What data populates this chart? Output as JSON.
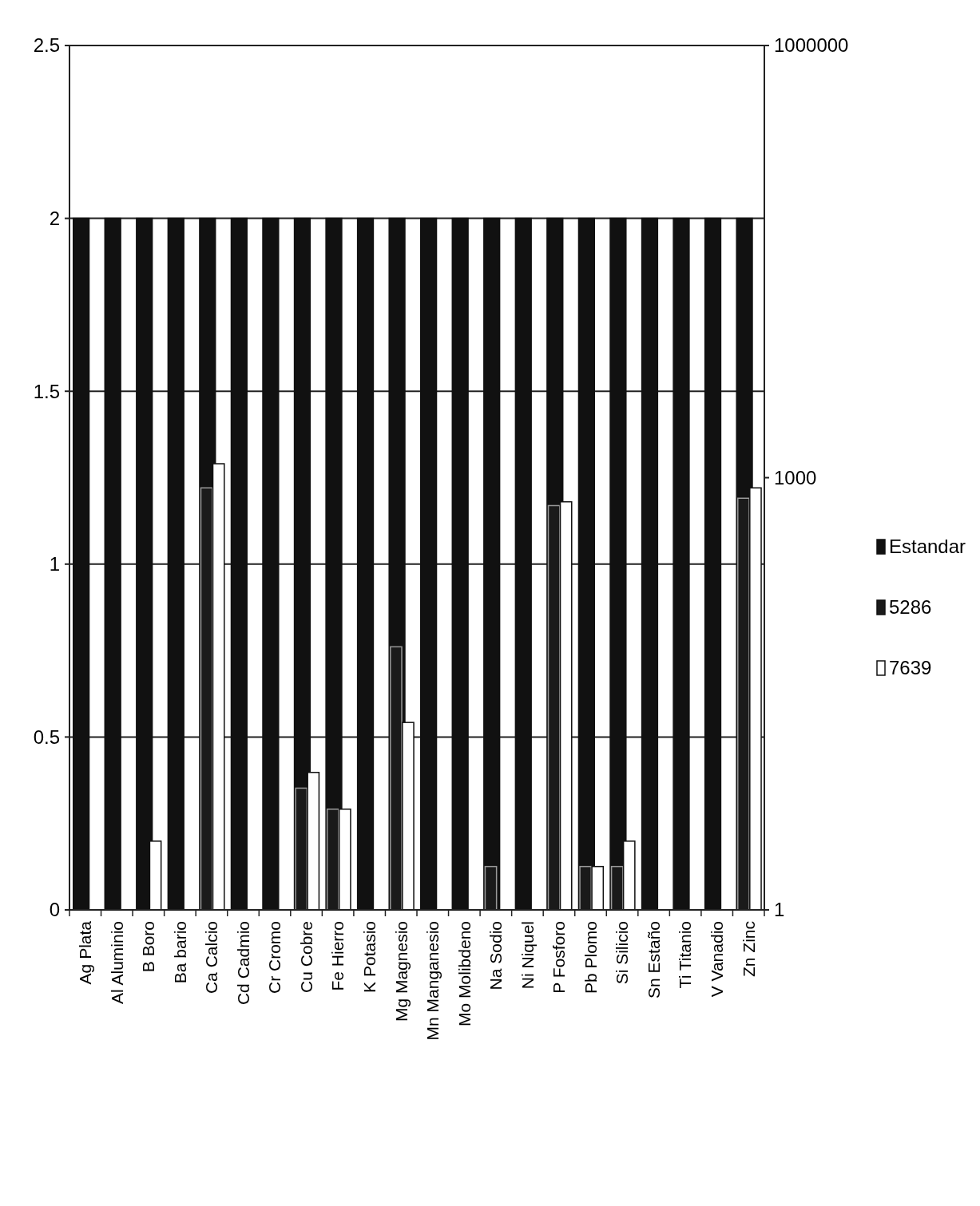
{
  "chart_data": {
    "type": "bar",
    "categories": [
      "Ag Plata",
      "Al Aluminio",
      "B Boro",
      "Ba bario",
      "Ca Calcio",
      "Cd Cadmio",
      "Cr Cromo",
      "Cu Cobre",
      "Fe Hierro",
      "K Potasio",
      "Mg Magnesio",
      "Mn Manganesio",
      "Mo Molibdeno",
      "Na Sodio",
      "Ni Niquel",
      "P Fosforo",
      "Pb Plomo",
      "Si Silicio",
      "Sn Estaño",
      "Ti Titanio",
      "V Vanadio",
      "Zn Zinc"
    ],
    "series": [
      {
        "name": "Estandar",
        "color": "#111111",
        "values": [
          2,
          2,
          2,
          2,
          2,
          2,
          2,
          2,
          2,
          2,
          2,
          2,
          2,
          2,
          2,
          2,
          2,
          2,
          2,
          2,
          2,
          2
        ]
      },
      {
        "name": "5286",
        "color": "#1a1a1a",
        "axis": "y2",
        "values": [
          null,
          null,
          null,
          null,
          850,
          null,
          null,
          7,
          5,
          null,
          67,
          null,
          null,
          2,
          null,
          640,
          2,
          2,
          null,
          null,
          null,
          720
        ]
      },
      {
        "name": "7639",
        "color": "#ffffff",
        "axis": "y2",
        "values": [
          null,
          null,
          3,
          null,
          1250,
          null,
          null,
          9,
          5,
          null,
          20,
          null,
          null,
          null,
          null,
          680,
          2,
          3,
          null,
          null,
          null,
          850
        ]
      }
    ],
    "ylim": [
      0,
      2.5
    ],
    "yticks": [
      0,
      0.5,
      1,
      1.5,
      2,
      2.5
    ],
    "y2lim": [
      1,
      1000000
    ],
    "y2ticks": [
      1,
      1000,
      1000000
    ],
    "log": "y2",
    "grid": "y",
    "legend": "right"
  }
}
